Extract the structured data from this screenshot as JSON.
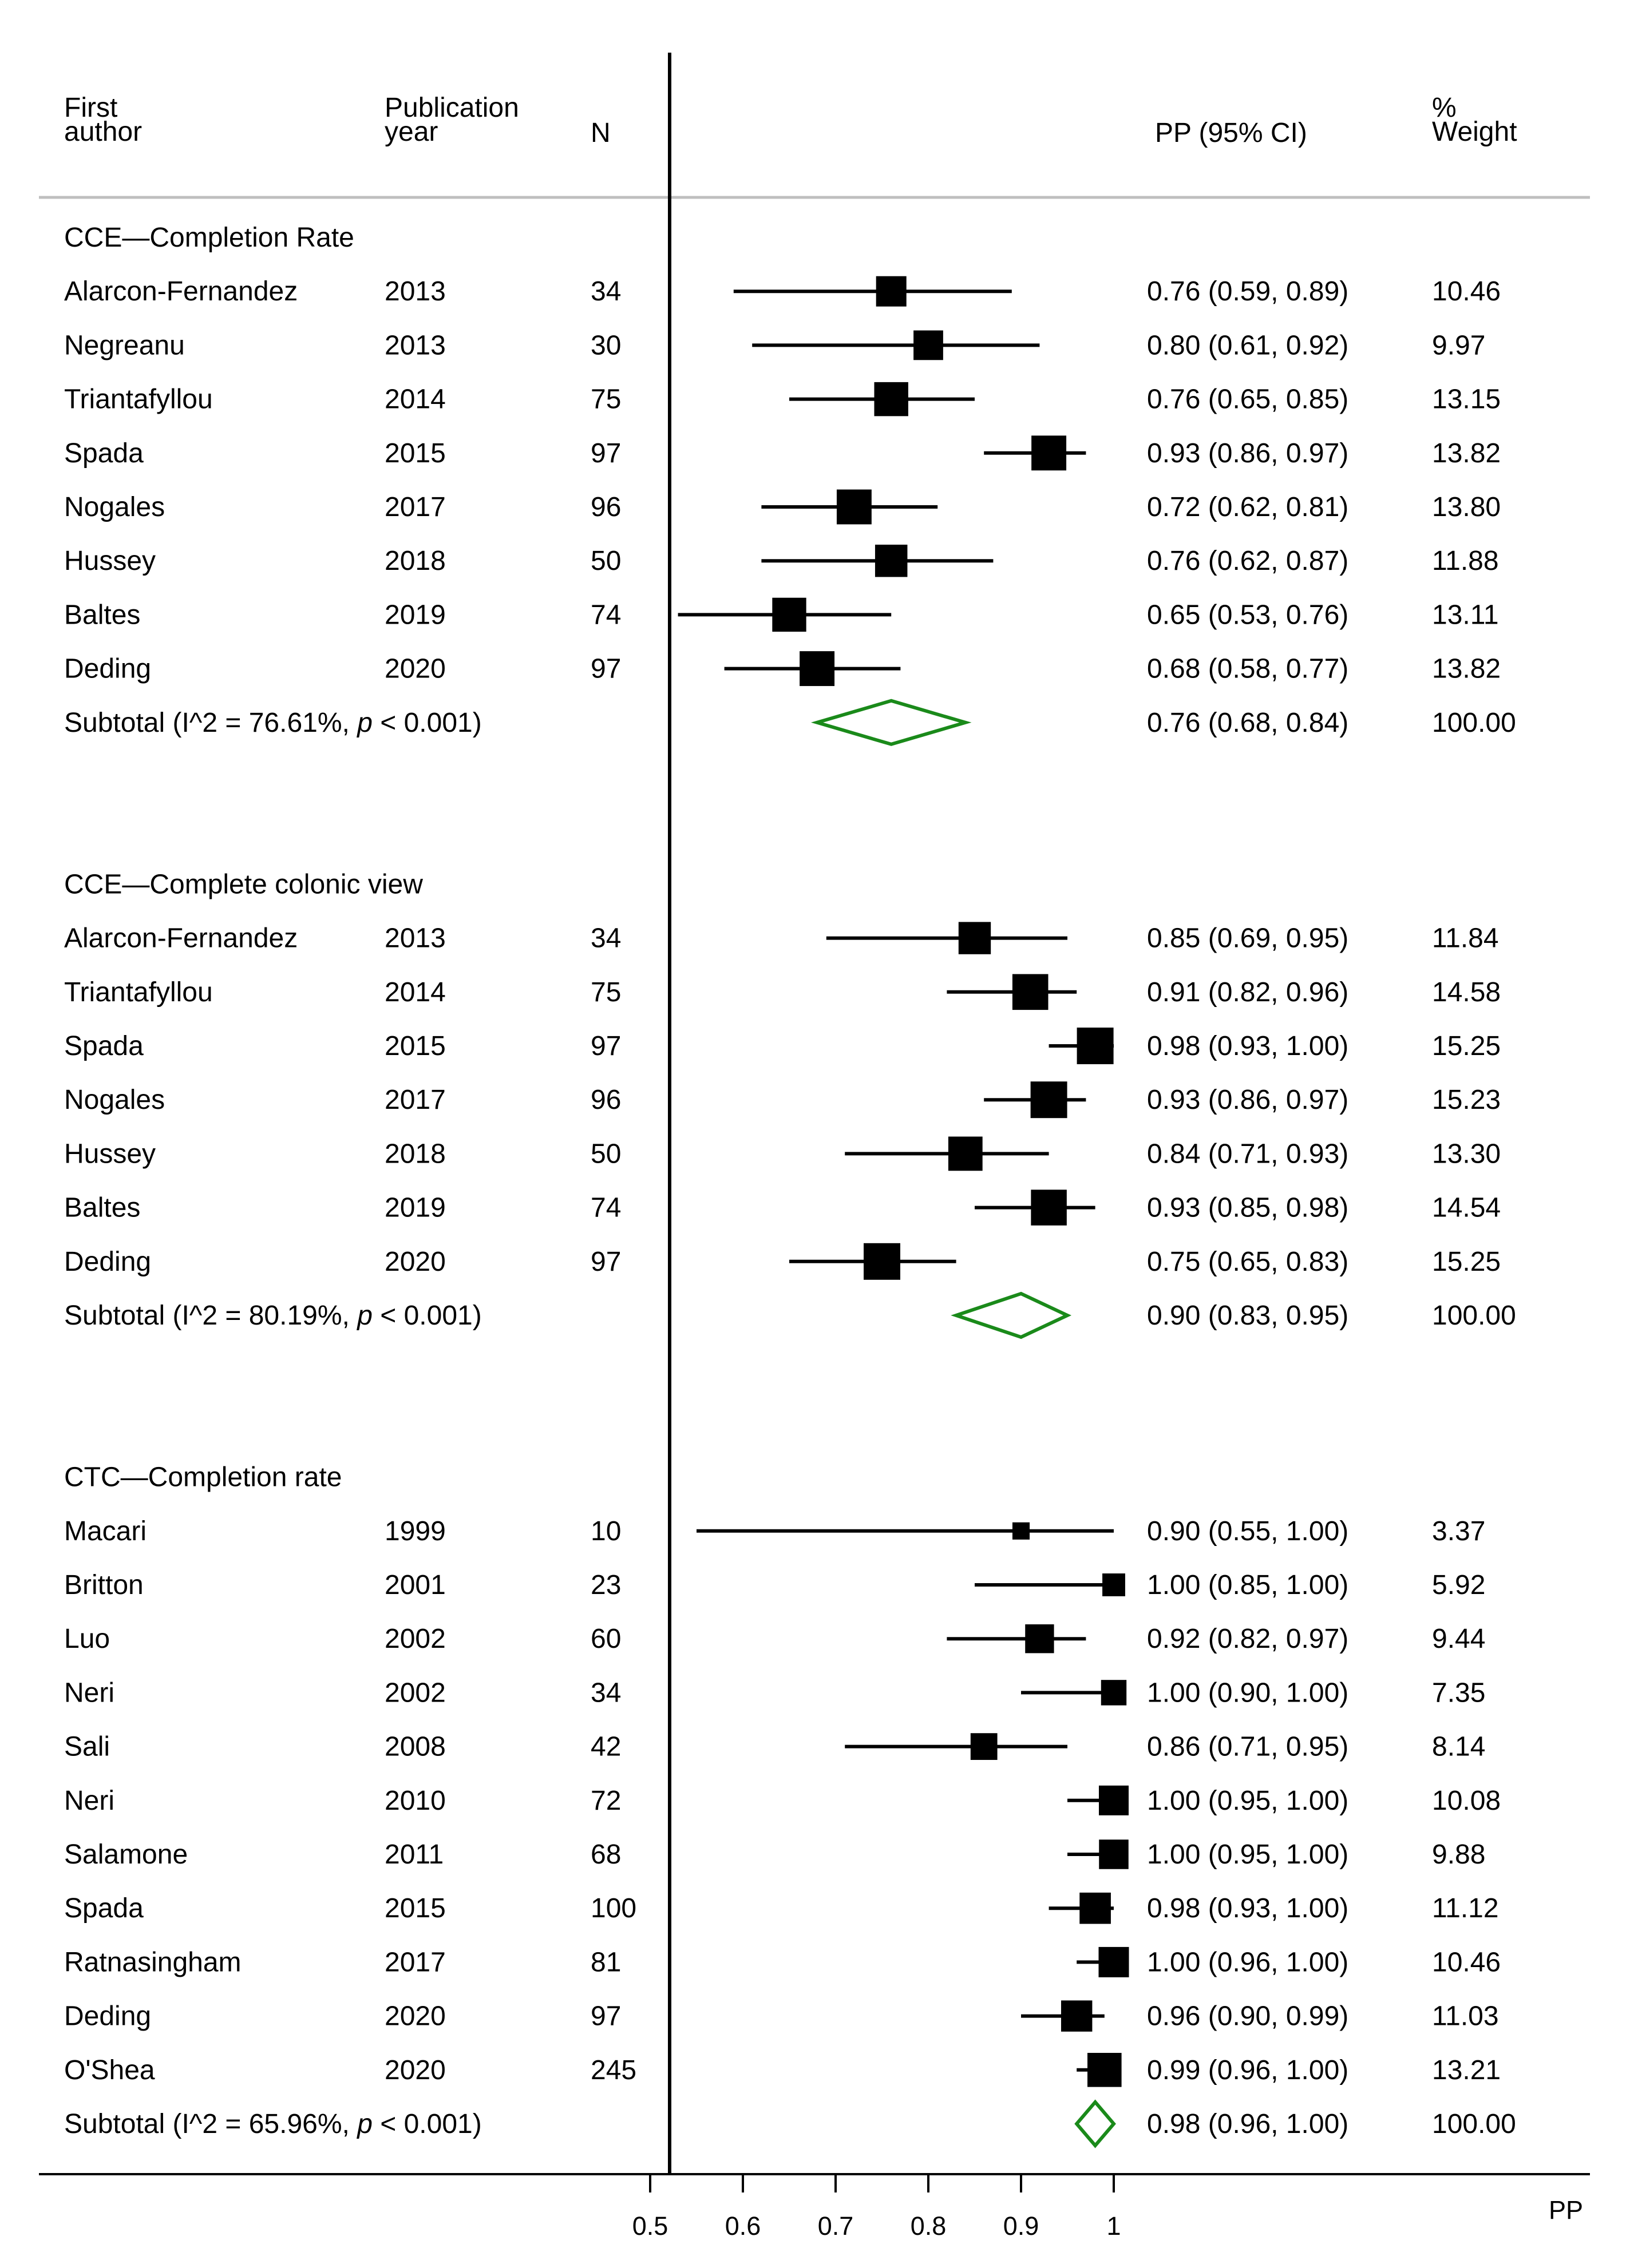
{
  "chart_data": {
    "type": "forest",
    "xlabel": "PP",
    "null_line": 0.5,
    "xlim": [
      0.5,
      1.0
    ],
    "xticks": [
      "0.5",
      "0.6",
      "0.7",
      "0.8",
      "0.9",
      "1"
    ],
    "header": {
      "first_author": [
        "First",
        "author"
      ],
      "publication_year": [
        "Publication",
        "year"
      ],
      "n": "N",
      "estimate": "PP (95% CI)",
      "weight": [
        "%",
        "Weight"
      ]
    },
    "groups": [
      {
        "title": "CCE—Completion Rate",
        "studies": [
          {
            "author": "Alarcon-Fernandez",
            "year": "2013",
            "n": "34",
            "pp": 0.76,
            "lo": 0.59,
            "hi": 0.89,
            "ci_text": "0.76 (0.59, 0.89)",
            "weight": "10.46"
          },
          {
            "author": "Negreanu",
            "year": "2013",
            "n": "30",
            "pp": 0.8,
            "lo": 0.61,
            "hi": 0.92,
            "ci_text": "0.80 (0.61, 0.92)",
            "weight": "9.97"
          },
          {
            "author": "Triantafyllou",
            "year": "2014",
            "n": "75",
            "pp": 0.76,
            "lo": 0.65,
            "hi": 0.85,
            "ci_text": "0.76 (0.65, 0.85)",
            "weight": "13.15"
          },
          {
            "author": "Spada",
            "year": "2015",
            "n": "97",
            "pp": 0.93,
            "lo": 0.86,
            "hi": 0.97,
            "ci_text": "0.93 (0.86, 0.97)",
            "weight": "13.82"
          },
          {
            "author": "Nogales",
            "year": "2017",
            "n": "96",
            "pp": 0.72,
            "lo": 0.62,
            "hi": 0.81,
            "ci_text": "0.72 (0.62, 0.81)",
            "weight": "13.80"
          },
          {
            "author": "Hussey",
            "year": "2018",
            "n": "50",
            "pp": 0.76,
            "lo": 0.62,
            "hi": 0.87,
            "ci_text": "0.76 (0.62, 0.87)",
            "weight": "11.88"
          },
          {
            "author": "Baltes",
            "year": "2019",
            "n": "74",
            "pp": 0.65,
            "lo": 0.53,
            "hi": 0.76,
            "ci_text": "0.65 (0.53, 0.76)",
            "weight": "13.11"
          },
          {
            "author": "Deding",
            "year": "2020",
            "n": "97",
            "pp": 0.68,
            "lo": 0.58,
            "hi": 0.77,
            "ci_text": "0.68 (0.58, 0.77)",
            "weight": "13.82"
          }
        ],
        "subtotal": {
          "label": "Subtotal  (I^2 = 76.61%, ",
          "p_italic": "p",
          "p_rest": " < 0.001)",
          "pp": 0.76,
          "lo": 0.68,
          "hi": 0.84,
          "ci_text": "0.76 (0.68, 0.84)",
          "weight": "100.00"
        }
      },
      {
        "title": "CCE—Complete colonic view",
        "studies": [
          {
            "author": "Alarcon-Fernandez",
            "year": "2013",
            "n": "34",
            "pp": 0.85,
            "lo": 0.69,
            "hi": 0.95,
            "ci_text": "0.85 (0.69, 0.95)",
            "weight": "11.84"
          },
          {
            "author": "Triantafyllou",
            "year": "2014",
            "n": "75",
            "pp": 0.91,
            "lo": 0.82,
            "hi": 0.96,
            "ci_text": "0.91 (0.82, 0.96)",
            "weight": "14.58"
          },
          {
            "author": "Spada",
            "year": "2015",
            "n": "97",
            "pp": 0.98,
            "lo": 0.93,
            "hi": 1.0,
            "ci_text": "0.98 (0.93, 1.00)",
            "weight": "15.25"
          },
          {
            "author": "Nogales",
            "year": "2017",
            "n": "96",
            "pp": 0.93,
            "lo": 0.86,
            "hi": 0.97,
            "ci_text": "0.93 (0.86, 0.97)",
            "weight": "15.23"
          },
          {
            "author": "Hussey",
            "year": "2018",
            "n": "50",
            "pp": 0.84,
            "lo": 0.71,
            "hi": 0.93,
            "ci_text": "0.84 (0.71, 0.93)",
            "weight": "13.30"
          },
          {
            "author": "Baltes",
            "year": "2019",
            "n": "74",
            "pp": 0.93,
            "lo": 0.85,
            "hi": 0.98,
            "ci_text": "0.93 (0.85, 0.98)",
            "weight": "14.54"
          },
          {
            "author": "Deding",
            "year": "2020",
            "n": "97",
            "pp": 0.75,
            "lo": 0.65,
            "hi": 0.83,
            "ci_text": "0.75 (0.65, 0.83)",
            "weight": "15.25"
          }
        ],
        "subtotal": {
          "label": "Subtotal  (I^2 = 80.19%, ",
          "p_italic": "p",
          "p_rest": " < 0.001)",
          "pp": 0.9,
          "lo": 0.83,
          "hi": 0.95,
          "ci_text": "0.90 (0.83, 0.95)",
          "weight": "100.00"
        }
      },
      {
        "title": "CTC—Completion rate",
        "studies": [
          {
            "author": "Macari",
            "year": "1999",
            "n": "10",
            "pp": 0.9,
            "lo": 0.55,
            "hi": 1.0,
            "ci_text": "0.90 (0.55, 1.00)",
            "weight": "3.37"
          },
          {
            "author": "Britton",
            "year": "2001",
            "n": "23",
            "pp": 1.0,
            "lo": 0.85,
            "hi": 1.0,
            "ci_text": "1.00 (0.85, 1.00)",
            "weight": "5.92"
          },
          {
            "author": "Luo",
            "year": "2002",
            "n": "60",
            "pp": 0.92,
            "lo": 0.82,
            "hi": 0.97,
            "ci_text": "0.92 (0.82, 0.97)",
            "weight": "9.44"
          },
          {
            "author": "Neri",
            "year": "2002",
            "n": "34",
            "pp": 1.0,
            "lo": 0.9,
            "hi": 1.0,
            "ci_text": "1.00 (0.90, 1.00)",
            "weight": "7.35"
          },
          {
            "author": "Sali",
            "year": "2008",
            "n": "42",
            "pp": 0.86,
            "lo": 0.71,
            "hi": 0.95,
            "ci_text": "0.86 (0.71, 0.95)",
            "weight": "8.14"
          },
          {
            "author": "Neri",
            "year": "2010",
            "n": "72",
            "pp": 1.0,
            "lo": 0.95,
            "hi": 1.0,
            "ci_text": "1.00 (0.95, 1.00)",
            "weight": "10.08"
          },
          {
            "author": "Salamone",
            "year": "2011",
            "n": "68",
            "pp": 1.0,
            "lo": 0.95,
            "hi": 1.0,
            "ci_text": "1.00 (0.95, 1.00)",
            "weight": "9.88"
          },
          {
            "author": "Spada",
            "year": "2015",
            "n": "100",
            "pp": 0.98,
            "lo": 0.93,
            "hi": 1.0,
            "ci_text": "0.98 (0.93, 1.00)",
            "weight": "11.12"
          },
          {
            "author": "Ratnasingham",
            "year": "2017",
            "n": "81",
            "pp": 1.0,
            "lo": 0.96,
            "hi": 1.0,
            "ci_text": "1.00 (0.96, 1.00)",
            "weight": "10.46"
          },
          {
            "author": "Deding",
            "year": "2020",
            "n": "97",
            "pp": 0.96,
            "lo": 0.9,
            "hi": 0.99,
            "ci_text": "0.96 (0.90, 0.99)",
            "weight": "11.03"
          },
          {
            "author": "O'Shea",
            "year": "2020",
            "n": "245",
            "pp": 0.99,
            "lo": 0.96,
            "hi": 1.0,
            "ci_text": "0.99 (0.96, 1.00)",
            "weight": "13.21"
          }
        ],
        "subtotal": {
          "label": "Subtotal  (I^2 = 65.96%, ",
          "p_italic": "p",
          "p_rest": " < 0.001)",
          "pp": 0.98,
          "lo": 0.96,
          "hi": 1.0,
          "ci_text": "0.98 (0.96, 1.00)",
          "weight": "100.00"
        }
      }
    ],
    "colors": {
      "marker": "#000000",
      "diamond": "#1a8a1a",
      "rule": "#bfbfbf"
    }
  }
}
